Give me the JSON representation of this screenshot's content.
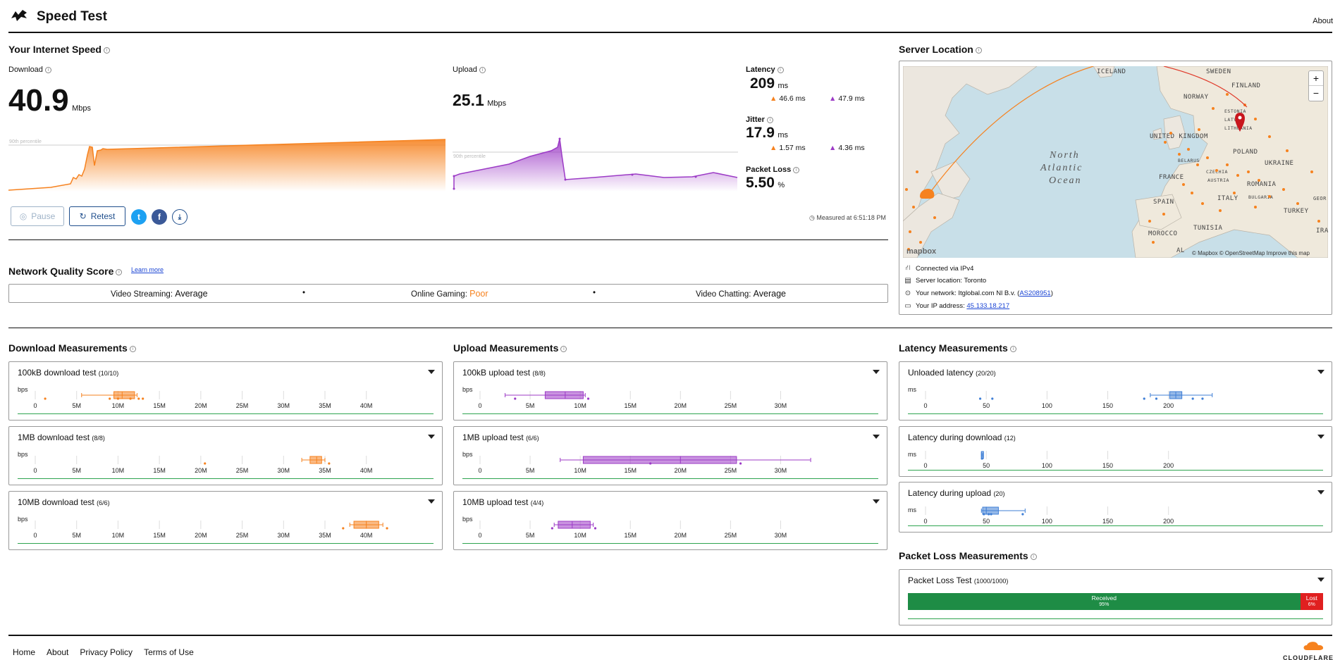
{
  "header": {
    "title": "Speed Test",
    "about": "About"
  },
  "speed": {
    "section_title": "Your Internet Speed",
    "download_label": "Download",
    "download_value": "40.9",
    "download_unit": "Mbps",
    "upload_label": "Upload",
    "upload_value": "25.1",
    "upload_unit": "Mbps",
    "percentile_label": "90th percentile",
    "latency_label": "Latency",
    "latency_value": "209",
    "latency_unit": "ms",
    "latency_down": "46.6 ms",
    "latency_up": "47.9 ms",
    "jitter_label": "Jitter",
    "jitter_value": "17.9",
    "jitter_unit": "ms",
    "jitter_down": "1.57 ms",
    "jitter_up": "4.36 ms",
    "loss_label": "Packet Loss",
    "loss_value": "5.50",
    "loss_unit": "%",
    "measured_at": "Measured at 6:51:18 PM",
    "pause_label": "Pause",
    "retest_label": "Retest"
  },
  "nqs": {
    "title": "Network Quality Score",
    "learn_more": "Learn more",
    "streaming_label": "Video Streaming:",
    "streaming_value": "Average",
    "gaming_label": "Online Gaming:",
    "gaming_value": "Poor",
    "chatting_label": "Video Chatting:",
    "chatting_value": "Average",
    "separator": "•"
  },
  "server": {
    "title": "Server Location",
    "map_labels": {
      "iceland": "ICELAND",
      "sweden": "SWEDEN",
      "finland": "FINLAND",
      "norway": "NORWAY",
      "estonia": "ESTONIA",
      "latvia": "LATVIA",
      "lithuania": "LITHUANIA",
      "uk": "UNITED KINGDOM",
      "belarus": "BELARUS",
      "poland": "POLAND",
      "czechia": "CZECHIA",
      "ukraine": "UKRAINE",
      "austria": "AUSTRIA",
      "france": "FRANCE",
      "romania": "ROMANIA",
      "bulgaria": "BULGARIA",
      "italy": "ITALY",
      "spain": "SPAIN",
      "turkey": "TURKEY",
      "georgia": "GEOR",
      "tunisia": "TUNISIA",
      "morocco": "MOROCCO",
      "iraq": "IRA",
      "algeria": "AL",
      "ocean1": "North",
      "ocean2": "Atlantic",
      "ocean3": "Ocean"
    },
    "mapbox": "mapbox",
    "attribution": "© Mapbox © OpenStreetMap  Improve this map",
    "zoom_in": "+",
    "zoom_out": "−",
    "connected": "Connected via IPv4",
    "location": "Server location: Toronto",
    "network_prefix": "Your network: Itglobal.com Nl B.v. (",
    "network_as": "AS208951",
    "network_suffix": ")",
    "ip_prefix": "Your IP address: ",
    "ip": "45.133.18.217"
  },
  "download_meas": {
    "title": "Download Measurements",
    "unit": "bps",
    "ticks": [
      "0",
      "5M",
      "10M",
      "15M",
      "20M",
      "25M",
      "30M",
      "35M",
      "40M"
    ],
    "tests": [
      {
        "name": "100kB download test",
        "count": "(10/10)"
      },
      {
        "name": "1MB download test",
        "count": "(8/8)"
      },
      {
        "name": "10MB download test",
        "count": "(6/6)"
      }
    ]
  },
  "upload_meas": {
    "title": "Upload Measurements",
    "unit": "bps",
    "ticks": [
      "0",
      "5M",
      "10M",
      "15M",
      "20M",
      "25M",
      "30M"
    ],
    "tests": [
      {
        "name": "100kB upload test",
        "count": "(8/8)"
      },
      {
        "name": "1MB upload test",
        "count": "(6/6)"
      },
      {
        "name": "10MB upload test",
        "count": "(4/4)"
      }
    ]
  },
  "latency_meas": {
    "title": "Latency Measurements",
    "unit": "ms",
    "ticks": [
      "0",
      "50",
      "100",
      "150",
      "200"
    ],
    "tests": [
      {
        "name": "Unloaded latency",
        "count": "(20/20)"
      },
      {
        "name": "Latency during download",
        "count": "(12)"
      },
      {
        "name": "Latency during upload",
        "count": "(20)"
      }
    ]
  },
  "packet_loss": {
    "title": "Packet Loss Measurements",
    "test_name": "Packet Loss Test",
    "test_count": "(1000/1000)",
    "received_label": "Received",
    "received_pct": "95%",
    "received_fraction": 0.945,
    "lost_label": "Lost",
    "lost_pct": "6%"
  },
  "footer": {
    "home": "Home",
    "about": "About",
    "privacy": "Privacy Policy",
    "terms": "Terms of Use",
    "brand": "CLOUDFLARE"
  },
  "colors": {
    "download": "#f6821f",
    "upload": "#9c3bc6",
    "latency": "#3f7fd6",
    "good": "#1e8c45",
    "bad": "#e02020",
    "poor": "#f6821f"
  }
}
